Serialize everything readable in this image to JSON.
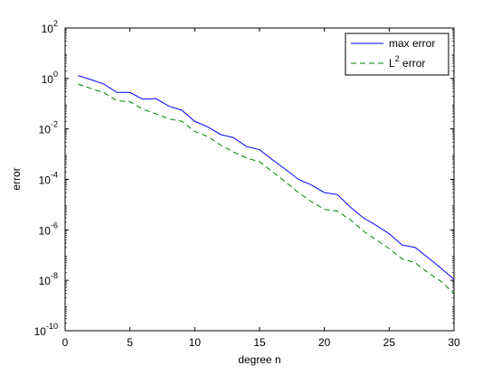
{
  "chart_data": {
    "type": "line",
    "title": "",
    "xlabel": "degree n",
    "ylabel": "error",
    "xlim": [
      0,
      30
    ],
    "ylim_exponents": [
      -10,
      2
    ],
    "yscale": "log",
    "grid": false,
    "legend_position": "top-right",
    "x_ticks": [
      "0",
      "5",
      "10",
      "15",
      "20",
      "25",
      "30"
    ],
    "y_tick_base": "10",
    "y_tick_exponents": [
      "-10",
      "-8",
      "-6",
      "-4",
      "-2",
      "0",
      "2"
    ],
    "legend": {
      "max_label": "max error",
      "l2_label_main": "L",
      "l2_label_sup": "2",
      "l2_label_tail": " error"
    },
    "series": [
      {
        "name": "max error",
        "color": "#0000ff",
        "dash": "solid",
        "x": [
          1,
          2,
          3,
          4,
          5,
          6,
          7,
          8,
          9,
          10,
          11,
          12,
          13,
          14,
          15,
          16,
          17,
          18,
          19,
          20,
          21,
          22,
          23,
          24,
          25,
          26,
          27,
          28,
          29,
          30
        ],
        "y": [
          1.3,
          0.9,
          0.6,
          0.28,
          0.28,
          0.15,
          0.16,
          0.08,
          0.055,
          0.02,
          0.012,
          0.006,
          0.0045,
          0.002,
          0.0015,
          0.0006,
          0.00025,
          0.0001,
          6e-05,
          3e-05,
          2.5e-05,
          8e-06,
          3e-06,
          1.5e-06,
          7e-07,
          2.5e-07,
          2e-07,
          8e-08,
          3e-08,
          1.1e-08
        ]
      },
      {
        "name": "L2 error",
        "color": "#008000",
        "dash": "dashed",
        "x": [
          1,
          2,
          3,
          4,
          5,
          6,
          7,
          8,
          9,
          10,
          11,
          12,
          13,
          14,
          15,
          16,
          17,
          18,
          19,
          20,
          21,
          22,
          23,
          24,
          25,
          26,
          27,
          28,
          29,
          30
        ],
        "y": [
          0.6,
          0.4,
          0.27,
          0.13,
          0.12,
          0.06,
          0.04,
          0.025,
          0.02,
          0.008,
          0.005,
          0.0023,
          0.0012,
          0.0007,
          0.0005,
          0.0002,
          8e-05,
          3e-05,
          1.3e-05,
          6.5e-06,
          5.5e-06,
          2.5e-06,
          9e-07,
          4e-07,
          1.8e-07,
          7e-08,
          5e-08,
          2e-08,
          9e-09,
          3e-09
        ]
      }
    ]
  }
}
